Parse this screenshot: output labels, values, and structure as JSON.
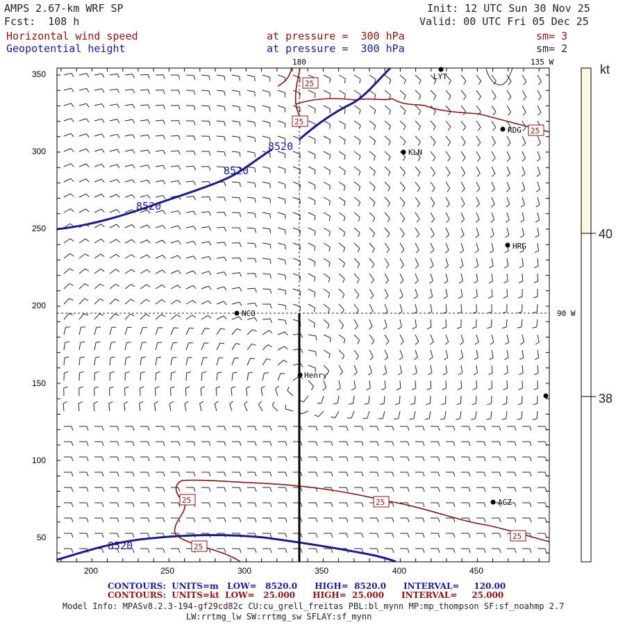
{
  "header": {
    "model": "AMPS 2.67-km WRF SP",
    "forecast": "Fcst:  108 h",
    "init": "Init: 12 UTC Sun 30 Nov 25",
    "valid": "Valid: 00 UTC Fri 05 Dec 25",
    "field1": "Horizontal wind speed",
    "field1_level": "at pressure =  300 hPa",
    "field1_sm": "sm= 3",
    "field2": "Geopotential height",
    "field2_level": "at pressure =  300 hPa",
    "field2_sm": "sm= 2"
  },
  "colors": {
    "wind_contour": "#8b1010",
    "height_contour": "#1a1a90",
    "colorbar_fill": "#fdf8e0"
  },
  "map": {
    "x_ticks": [
      "200",
      "250",
      "300",
      "350",
      "400",
      "450"
    ],
    "y_ticks": [
      "50",
      "100",
      "150",
      "200",
      "250",
      "300",
      "350"
    ],
    "longitude_labels": [
      "180",
      "135 W",
      "90 W"
    ],
    "stations": [
      {
        "name": "LYT"
      },
      {
        "name": "RDG"
      },
      {
        "name": "KLN"
      },
      {
        "name": "HRG"
      },
      {
        "name": "NCO"
      },
      {
        "name": "Henry"
      },
      {
        "name": "AGZ"
      }
    ],
    "height_contour_label": "8520",
    "wind_contour_label": "25",
    "icon": "wind-barb-field"
  },
  "colorbar": {
    "unit": "kt",
    "labels": [
      "40",
      "38"
    ]
  },
  "footer": {
    "contours1": "CONTOURS:  UNITS=m   LOW=   8520.0      HIGH=  8520.0      INTERVAL=     120.00",
    "contours2": "CONTOURS:  UNITS=kt  LOW=   25.000      HIGH=  25.000      INTERVAL=     25.000",
    "model_info": "Model Info: MPASv8.2.3-194-gf29cd82c CU:cu_grell_freitas PBL:bl_mynn MP:mp_thompson SF:sf_noahmp 2.7",
    "model_info2": "LW:rrtmg_lw SW:rrtmg_sw SFLAY:sf_mynn"
  }
}
